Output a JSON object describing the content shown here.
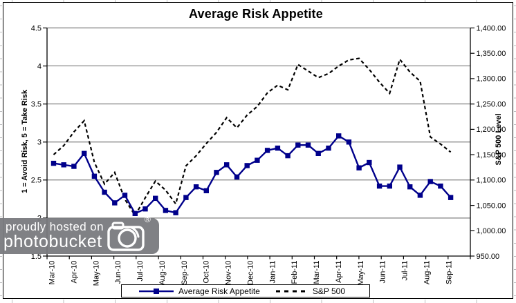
{
  "watermark": {
    "line1": "proudly hosted on",
    "line2": "photobucket",
    "registered_mark": "®"
  },
  "chart_data": {
    "type": "line",
    "title": "Average Risk Appetite",
    "grid": "horizontal",
    "legend_position": "bottom",
    "left_axis": {
      "label": "1 = Avoid Risk, 5 = Take Risk",
      "min": 1.5,
      "max": 4.5,
      "tick_step": 0.5,
      "ticks": [
        "1.5",
        "2",
        "2.5",
        "3",
        "3.5",
        "4",
        "4.5"
      ]
    },
    "right_axis": {
      "label": "S&P 500 Level",
      "min": 950,
      "max": 1400,
      "tick_step": 50,
      "ticks": [
        "950.00",
        "1,000.00",
        "1,050.00",
        "1,100.00",
        "1,150.00",
        "1,200.00",
        "1,250.00",
        "1,300.00",
        "1,350.00",
        "1,400.00"
      ]
    },
    "x_axis": {
      "tick_labels": [
        "Mar-10",
        "Apr-10",
        "May-10",
        "Jun-10",
        "Jul-10",
        "Aug-10",
        "Sep-10",
        "Oct-10",
        "Nov-10",
        "Dec-10",
        "Jan-11",
        "Feb-11",
        "Mar-11",
        "Apr-11",
        "May-11",
        "Jun-11",
        "Jul-11",
        "Aug-11",
        "Sep-11"
      ],
      "points": 40
    },
    "series": [
      {
        "name": "Average Risk Appetite",
        "axis": "left",
        "color": "#00008B",
        "style": "solid",
        "marker": "square",
        "values": [
          2.72,
          2.7,
          2.68,
          2.85,
          2.55,
          2.34,
          2.2,
          2.3,
          2.06,
          2.12,
          2.26,
          2.1,
          2.07,
          2.27,
          2.41,
          2.36,
          2.6,
          2.7,
          2.54,
          2.69,
          2.76,
          2.89,
          2.92,
          2.82,
          2.96,
          2.96,
          2.85,
          2.92,
          3.08,
          3.0,
          2.66,
          2.73,
          2.42,
          2.42,
          2.67,
          2.41,
          2.3,
          2.48,
          2.42,
          2.27
        ]
      },
      {
        "name": "S&P 500",
        "axis": "right",
        "color": "#000000",
        "style": "dashed",
        "marker": "none",
        "values": [
          1150,
          1168,
          1195,
          1217,
          1135,
          1092,
          1115,
          1062,
          1030,
          1065,
          1098,
          1080,
          1053,
          1128,
          1148,
          1172,
          1194,
          1223,
          1203,
          1228,
          1245,
          1272,
          1287,
          1278,
          1328,
          1315,
          1302,
          1310,
          1325,
          1337,
          1340,
          1318,
          1293,
          1271,
          1338,
          1313,
          1295,
          1185,
          1171,
          1155
        ]
      }
    ]
  }
}
